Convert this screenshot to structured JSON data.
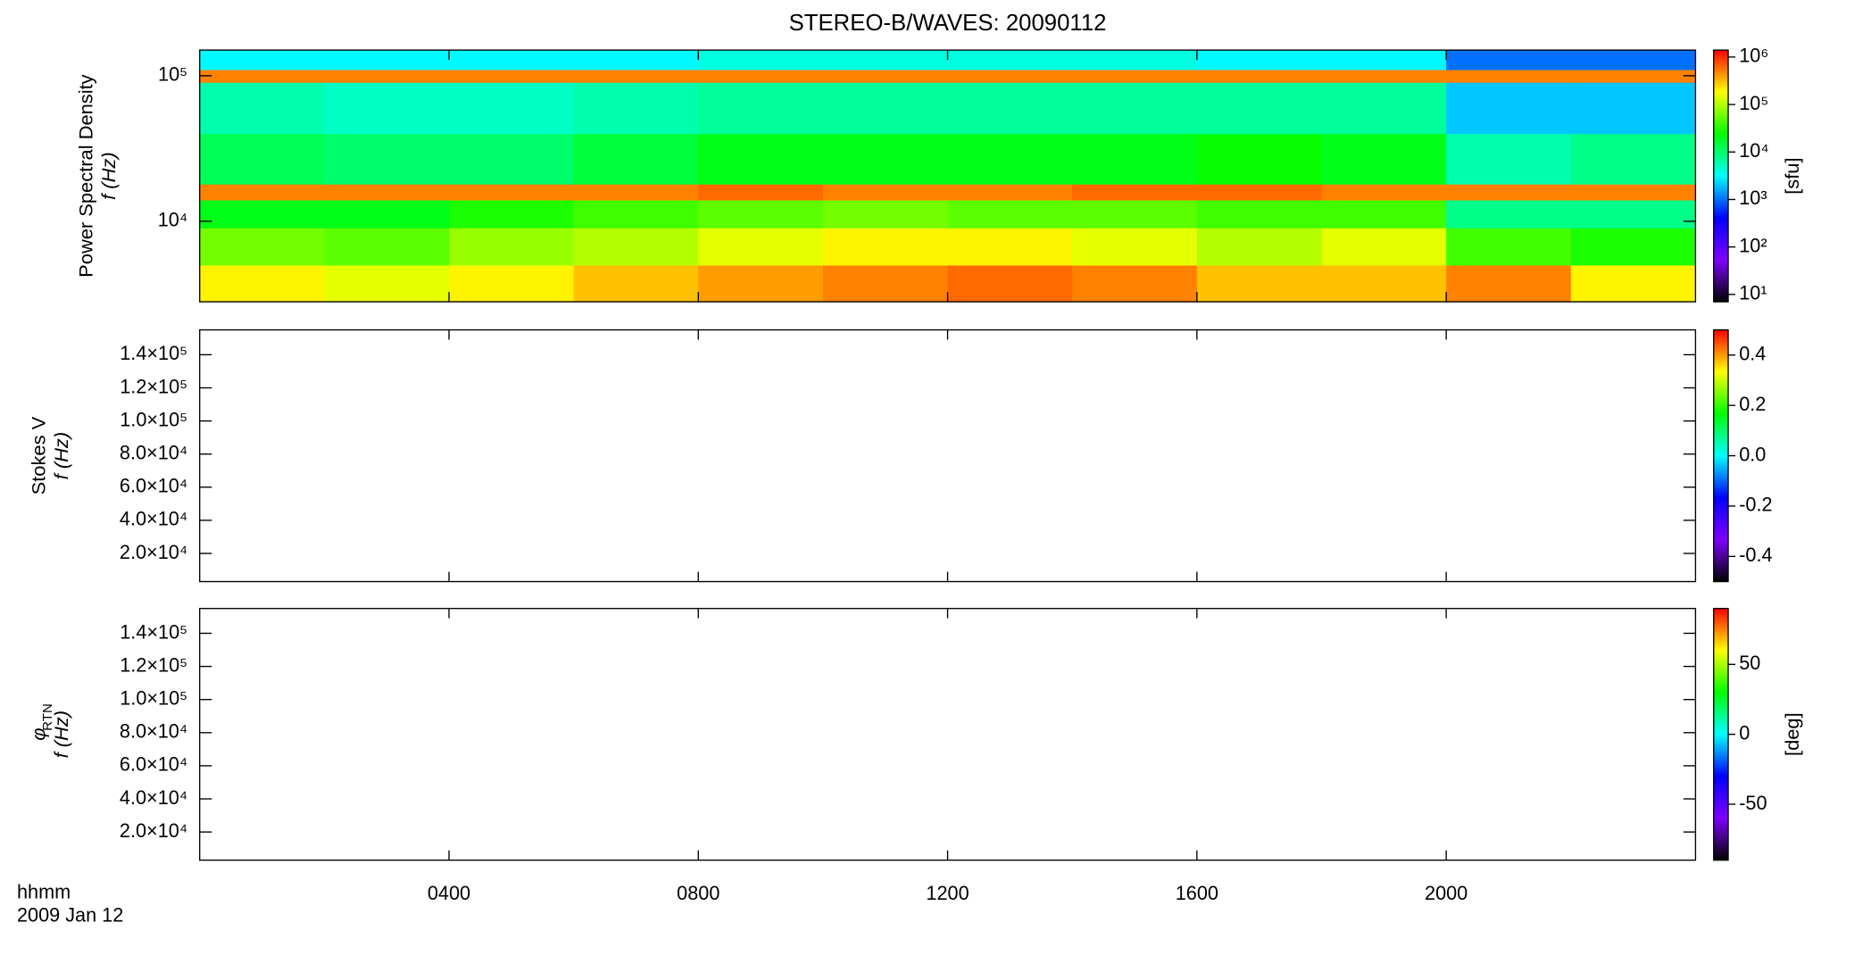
{
  "chart_data": [
    {
      "type": "heatmap",
      "title": "STEREO-B/WAVES: 20090112",
      "ylabel": "Power Spectral Density",
      "ylabel2": "f (Hz)",
      "log_y": true,
      "xlim": [
        0,
        24
      ],
      "ylim": [
        2800,
        150000
      ],
      "yticks": [
        {
          "value": 10000,
          "label": "10⁴"
        },
        {
          "value": 100000,
          "label": "10⁵"
        }
      ],
      "xticks": [
        {
          "value": 4,
          "label": "0400"
        },
        {
          "value": 8,
          "label": "0800"
        },
        {
          "value": 12,
          "label": "1200"
        },
        {
          "value": 16,
          "label": "1600"
        },
        {
          "value": 20,
          "label": "2000"
        }
      ],
      "x_edges": [
        0,
        2,
        4,
        6,
        8,
        10,
        12,
        14,
        16,
        18,
        20,
        22,
        24
      ],
      "y_edges": [
        2800,
        5000,
        9000,
        14000,
        18000,
        40000,
        90000,
        110000,
        150000
      ],
      "values": [
        [
          200000,
          150000,
          200000,
          300000,
          400000,
          500000,
          600000,
          500000,
          300000,
          300000,
          500000,
          200000
        ],
        [
          60000,
          50000,
          80000,
          100000,
          150000,
          200000,
          200000,
          150000,
          100000,
          150000,
          40000,
          30000
        ],
        [
          20000,
          20000,
          30000,
          40000,
          50000,
          60000,
          50000,
          50000,
          40000,
          40000,
          8000,
          8000
        ],
        [
          500000,
          500000,
          500000,
          500000,
          600000,
          500000,
          500000,
          600000,
          600000,
          500000,
          500000,
          500000
        ],
        [
          12000,
          10000,
          10000,
          15000,
          20000,
          20000,
          20000,
          20000,
          25000,
          20000,
          6000,
          8000
        ],
        [
          6000,
          5000,
          5000,
          6000,
          7000,
          7000,
          7000,
          7000,
          7000,
          7000,
          2000,
          2000
        ],
        [
          500000,
          500000,
          500000,
          500000,
          500000,
          500000,
          500000,
          500000,
          500000,
          500000,
          500000,
          500000
        ],
        [
          3000,
          3000,
          3000,
          3000,
          4000,
          4000,
          4000,
          4000,
          3000,
          3000,
          1000,
          1000
        ]
      ],
      "colorbar": {
        "log": true,
        "lim": [
          7,
          1400000
        ],
        "label": "[sfu]",
        "ticks": [
          {
            "value": 10,
            "label": "10¹"
          },
          {
            "value": 100,
            "label": "10²"
          },
          {
            "value": 1000,
            "label": "10³"
          },
          {
            "value": 10000,
            "label": "10⁴"
          },
          {
            "value": 100000,
            "label": "10⁵"
          },
          {
            "value": 1000000,
            "label": "10⁶"
          }
        ]
      },
      "colormap": [
        "#000000",
        "#7f00ff",
        "#0000ff",
        "#00ffff",
        "#00ff00",
        "#ffff00",
        "#ff0000"
      ]
    },
    {
      "type": "heatmap",
      "ylabel": "Stokes V",
      "ylabel2": "f (Hz)",
      "log_y": false,
      "xlim": [
        0,
        24
      ],
      "ylim": [
        3000,
        155000
      ],
      "yticks": [
        {
          "value": 20000,
          "label": "2.0×10⁴"
        },
        {
          "value": 40000,
          "label": "4.0×10⁴"
        },
        {
          "value": 60000,
          "label": "6.0×10⁴"
        },
        {
          "value": 80000,
          "label": "8.0×10⁴"
        },
        {
          "value": 100000,
          "label": "1.0×10⁵"
        },
        {
          "value": 120000,
          "label": "1.2×10⁵"
        },
        {
          "value": 140000,
          "label": "1.4×10⁵"
        }
      ],
      "xticks": [
        {
          "value": 4,
          "label": "0400"
        },
        {
          "value": 8,
          "label": "0800"
        },
        {
          "value": 12,
          "label": "1200"
        },
        {
          "value": 16,
          "label": "1600"
        },
        {
          "value": 20,
          "label": "2000"
        }
      ],
      "colorbar": {
        "log": false,
        "lim": [
          -0.5,
          0.5
        ],
        "ticks": [
          -0.4,
          -0.2,
          {
            "value": 0,
            "label": "0.0"
          },
          0.2,
          0.4
        ]
      },
      "colormap": [
        "#000000",
        "#7f00ff",
        "#0000ff",
        "#00ffff",
        "#00ff00",
        "#ffff00",
        "#ff0000"
      ]
    },
    {
      "type": "heatmap",
      "ylabel": "φ",
      "ylabel_sub": "RTN",
      "ylabel2": "f (Hz)",
      "log_y": false,
      "xlim": [
        0,
        24
      ],
      "ylim": [
        3000,
        155000
      ],
      "yticks": [
        {
          "value": 20000,
          "label": "2.0×10⁴"
        },
        {
          "value": 40000,
          "label": "4.0×10⁴"
        },
        {
          "value": 60000,
          "label": "6.0×10⁴"
        },
        {
          "value": 80000,
          "label": "8.0×10⁴"
        },
        {
          "value": 100000,
          "label": "1.0×10⁵"
        },
        {
          "value": 120000,
          "label": "1.2×10⁵"
        },
        {
          "value": 140000,
          "label": "1.4×10⁵"
        }
      ],
      "xticks": [
        {
          "value": 4,
          "label": "0400"
        },
        {
          "value": 8,
          "label": "0800"
        },
        {
          "value": 12,
          "label": "1200"
        },
        {
          "value": 16,
          "label": "1600"
        },
        {
          "value": 20,
          "label": "2000"
        }
      ],
      "xlabel": "hhmm",
      "xlabel2": "2009 Jan 12",
      "colorbar": {
        "log": false,
        "lim": [
          -90,
          90
        ],
        "label": "[deg]",
        "ticks": [
          -50,
          0,
          50
        ]
      },
      "colormap": [
        "#000000",
        "#7f00ff",
        "#0000ff",
        "#00ffff",
        "#00ff00",
        "#ffff00",
        "#ff0000"
      ]
    }
  ]
}
